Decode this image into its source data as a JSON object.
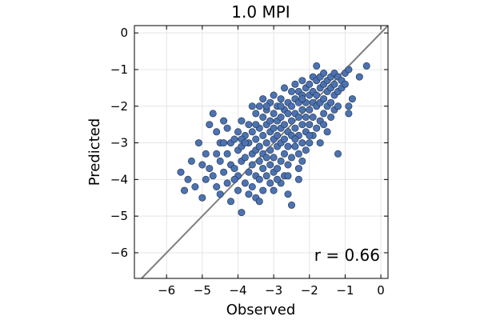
{
  "chart_data": {
    "type": "scatter",
    "title": "1.0 MPI",
    "xlabel": "Observed",
    "ylabel": "Predicted",
    "xlim": [
      -6.9,
      0.2
    ],
    "ylim": [
      -6.7,
      0.2
    ],
    "xticks": [
      -6,
      -5,
      -4,
      -3,
      -2,
      -1,
      0
    ],
    "yticks": [
      0,
      -1,
      -2,
      -3,
      -4,
      -5,
      -6
    ],
    "tick_labels": {
      "x": [
        "−6",
        "−5",
        "−4",
        "−3",
        "−2",
        "−1",
        "0"
      ],
      "y": [
        "0",
        "−1",
        "−2",
        "−3",
        "−4",
        "−5",
        "−6"
      ]
    },
    "grid": true,
    "reference_line": "y = x",
    "annotation": "r = 0.66",
    "marker_color": "#4c72b0",
    "line_color": "#808080",
    "points": [
      [
        -5.6,
        -3.8
      ],
      [
        -5.5,
        -4.3
      ],
      [
        -5.4,
        -4.0
      ],
      [
        -5.3,
        -3.5
      ],
      [
        -5.2,
        -4.2
      ],
      [
        -5.1,
        -3.0
      ],
      [
        -5.0,
        -3.6
      ],
      [
        -5.0,
        -4.5
      ],
      [
        -4.9,
        -3.3
      ],
      [
        -4.9,
        -4.0
      ],
      [
        -4.8,
        -2.5
      ],
      [
        -4.8,
        -3.7
      ],
      [
        -4.7,
        -2.2
      ],
      [
        -4.7,
        -3.9
      ],
      [
        -4.6,
        -2.7
      ],
      [
        -4.6,
        -4.2
      ],
      [
        -4.5,
        -3.0
      ],
      [
        -4.5,
        -3.5
      ],
      [
        -4.5,
        -4.4
      ],
      [
        -4.4,
        -2.4
      ],
      [
        -4.4,
        -3.8
      ],
      [
        -4.3,
        -2.6
      ],
      [
        -4.3,
        -3.3
      ],
      [
        -4.3,
        -4.1
      ],
      [
        -4.2,
        -3.0
      ],
      [
        -4.2,
        -3.6
      ],
      [
        -4.2,
        -4.6
      ],
      [
        -4.1,
        -2.9
      ],
      [
        -4.1,
        -3.7
      ],
      [
        -4.0,
        -3.2
      ],
      [
        -4.0,
        -3.9
      ],
      [
        -4.0,
        -4.3
      ],
      [
        -3.9,
        -2.4
      ],
      [
        -3.9,
        -3.1
      ],
      [
        -3.9,
        -3.5
      ],
      [
        -3.9,
        -4.9
      ],
      [
        -3.8,
        -2.8
      ],
      [
        -3.8,
        -3.4
      ],
      [
        -3.8,
        -4.1
      ],
      [
        -3.7,
        -2.5
      ],
      [
        -3.7,
        -3.0
      ],
      [
        -3.7,
        -3.8
      ],
      [
        -3.7,
        -4.4
      ],
      [
        -3.6,
        -2.7
      ],
      [
        -3.6,
        -3.3
      ],
      [
        -3.6,
        -3.6
      ],
      [
        -3.6,
        -4.2
      ],
      [
        -3.5,
        -2.2
      ],
      [
        -3.5,
        -2.9
      ],
      [
        -3.5,
        -3.2
      ],
      [
        -3.5,
        -3.9
      ],
      [
        -3.5,
        -4.5
      ],
      [
        -3.4,
        -2.0
      ],
      [
        -3.4,
        -2.6
      ],
      [
        -3.4,
        -3.1
      ],
      [
        -3.4,
        -3.5
      ],
      [
        -3.4,
        -4.0
      ],
      [
        -3.3,
        -1.8
      ],
      [
        -3.3,
        -2.3
      ],
      [
        -3.3,
        -2.8
      ],
      [
        -3.3,
        -3.3
      ],
      [
        -3.3,
        -3.7
      ],
      [
        -3.3,
        -4.3
      ],
      [
        -3.2,
        -2.1
      ],
      [
        -3.2,
        -2.5
      ],
      [
        -3.2,
        -3.0
      ],
      [
        -3.2,
        -3.4
      ],
      [
        -3.2,
        -3.9
      ],
      [
        -3.1,
        -1.9
      ],
      [
        -3.1,
        -2.4
      ],
      [
        -3.1,
        -2.7
      ],
      [
        -3.1,
        -3.2
      ],
      [
        -3.1,
        -3.6
      ],
      [
        -3.1,
        -4.1
      ],
      [
        -3.0,
        -1.7
      ],
      [
        -3.0,
        -2.2
      ],
      [
        -3.0,
        -2.6
      ],
      [
        -3.0,
        -2.9
      ],
      [
        -3.0,
        -3.4
      ],
      [
        -3.0,
        -3.8
      ],
      [
        -3.0,
        -4.3
      ],
      [
        -2.9,
        -2.0
      ],
      [
        -2.9,
        -2.4
      ],
      [
        -2.9,
        -2.8
      ],
      [
        -2.9,
        -3.1
      ],
      [
        -2.9,
        -3.7
      ],
      [
        -2.8,
        -1.8
      ],
      [
        -2.8,
        -2.3
      ],
      [
        -2.8,
        -2.6
      ],
      [
        -2.8,
        -3.0
      ],
      [
        -2.8,
        -3.5
      ],
      [
        -2.8,
        -4.1
      ],
      [
        -2.7,
        -1.5
      ],
      [
        -2.7,
        -2.1
      ],
      [
        -2.7,
        -2.5
      ],
      [
        -2.7,
        -2.9
      ],
      [
        -2.7,
        -3.3
      ],
      [
        -2.7,
        -3.9
      ],
      [
        -2.6,
        -1.9
      ],
      [
        -2.6,
        -2.2
      ],
      [
        -2.6,
        -2.7
      ],
      [
        -2.6,
        -3.1
      ],
      [
        -2.6,
        -3.6
      ],
      [
        -2.6,
        -4.4
      ],
      [
        -2.5,
        -1.6
      ],
      [
        -2.5,
        -2.0
      ],
      [
        -2.5,
        -2.4
      ],
      [
        -2.5,
        -2.8
      ],
      [
        -2.5,
        -3.4
      ],
      [
        -2.5,
        -4.7
      ],
      [
        -2.4,
        -1.4
      ],
      [
        -2.4,
        -1.8
      ],
      [
        -2.4,
        -2.2
      ],
      [
        -2.4,
        -2.6
      ],
      [
        -2.4,
        -3.1
      ],
      [
        -2.3,
        -1.6
      ],
      [
        -2.3,
        -1.9
      ],
      [
        -2.3,
        -2.3
      ],
      [
        -2.3,
        -2.8
      ],
      [
        -2.3,
        -3.3
      ],
      [
        -2.3,
        -3.7
      ],
      [
        -2.2,
        -1.3
      ],
      [
        -2.2,
        -1.7
      ],
      [
        -2.2,
        -2.1
      ],
      [
        -2.2,
        -2.5
      ],
      [
        -2.2,
        -3.0
      ],
      [
        -2.2,
        -3.5
      ],
      [
        -2.1,
        -1.5
      ],
      [
        -2.1,
        -1.9
      ],
      [
        -2.1,
        -2.3
      ],
      [
        -2.1,
        -2.7
      ],
      [
        -2.1,
        -3.2
      ],
      [
        -2.0,
        -1.4
      ],
      [
        -2.0,
        -1.7
      ],
      [
        -2.0,
        -2.1
      ],
      [
        -2.0,
        -2.5
      ],
      [
        -2.0,
        -3.0
      ],
      [
        -1.9,
        -1.2
      ],
      [
        -1.9,
        -1.6
      ],
      [
        -1.9,
        -1.9
      ],
      [
        -1.9,
        -2.3
      ],
      [
        -1.9,
        -2.8
      ],
      [
        -1.8,
        -0.9
      ],
      [
        -1.8,
        -1.3
      ],
      [
        -1.8,
        -1.7
      ],
      [
        -1.8,
        -2.0
      ],
      [
        -1.8,
        -2.6
      ],
      [
        -1.7,
        -1.2
      ],
      [
        -1.7,
        -1.5
      ],
      [
        -1.7,
        -1.9
      ],
      [
        -1.7,
        -2.4
      ],
      [
        -1.6,
        -1.1
      ],
      [
        -1.6,
        -1.4
      ],
      [
        -1.6,
        -1.8
      ],
      [
        -1.6,
        -2.2
      ],
      [
        -1.5,
        -1.3
      ],
      [
        -1.5,
        -1.6
      ],
      [
        -1.5,
        -2.0
      ],
      [
        -1.5,
        -2.7
      ],
      [
        -1.4,
        -1.2
      ],
      [
        -1.4,
        -1.5
      ],
      [
        -1.4,
        -1.9
      ],
      [
        -1.4,
        -2.3
      ],
      [
        -1.3,
        -1.1
      ],
      [
        -1.3,
        -1.4
      ],
      [
        -1.3,
        -1.7
      ],
      [
        -1.3,
        -2.1
      ],
      [
        -1.2,
        -1.2
      ],
      [
        -1.2,
        -1.6
      ],
      [
        -1.2,
        -3.3
      ],
      [
        -1.1,
        -1.3
      ],
      [
        -1.1,
        -1.5
      ],
      [
        -1.0,
        -1.1
      ],
      [
        -1.0,
        -1.4
      ],
      [
        -0.9,
        -1.0
      ],
      [
        -0.9,
        -2.0
      ],
      [
        -0.9,
        -2.2
      ],
      [
        -0.8,
        -1.8
      ],
      [
        -0.6,
        -1.2
      ],
      [
        -0.4,
        -0.9
      ],
      [
        -3.6,
        -2.0
      ],
      [
        -3.9,
        -2.9
      ],
      [
        -4.6,
        -3.3
      ],
      [
        -4.1,
        -4.0
      ],
      [
        -3.4,
        -4.6
      ],
      [
        -2.9,
        -4.0
      ],
      [
        -2.6,
        -3.9
      ],
      [
        -2.3,
        -4.0
      ],
      [
        -1.7,
        -3.0
      ],
      [
        -2.0,
        -2.8
      ],
      [
        -3.8,
        -3.0
      ],
      [
        -3.2,
        -2.0
      ],
      [
        -2.4,
        -2.9
      ],
      [
        -4.4,
        -3.0
      ],
      [
        -4.0,
        -2.7
      ],
      [
        -3.5,
        -2.5
      ],
      [
        -2.8,
        -2.0
      ],
      [
        -2.2,
        -1.8
      ],
      [
        -1.6,
        -2.5
      ],
      [
        -1.2,
        -2.0
      ]
    ]
  }
}
